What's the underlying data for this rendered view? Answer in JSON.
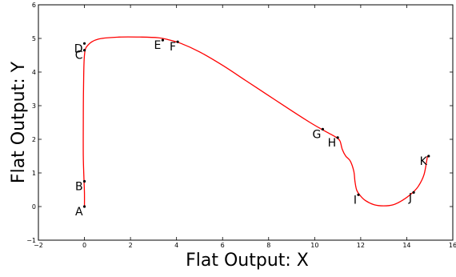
{
  "chart_data": {
    "type": "line",
    "title": "",
    "xlabel": "Flat Output: X",
    "ylabel": "Flat Output: Y",
    "xlim": [
      -2,
      16
    ],
    "ylim": [
      -1,
      6
    ],
    "xticks": [
      -2,
      0,
      2,
      4,
      6,
      8,
      10,
      12,
      14,
      16
    ],
    "yticks": [
      -1,
      0,
      1,
      2,
      3,
      4,
      5,
      6
    ],
    "grid": false,
    "series": [
      {
        "color": "#ff0000",
        "x": [
          0.0,
          0.0,
          -0.02,
          -0.05,
          -0.05,
          -0.04,
          0.0,
          0.15,
          0.6,
          1.5,
          2.5,
          3.2,
          3.6,
          4.2,
          5.0,
          6.0,
          7.0,
          8.0,
          9.0,
          9.8,
          10.3,
          10.7,
          10.95,
          11.1,
          11.2,
          11.35,
          11.55,
          11.7,
          11.75,
          11.82,
          11.95,
          12.2,
          12.6,
          13.0,
          13.4,
          13.8,
          14.2,
          14.5,
          14.75,
          14.9
        ],
        "y": [
          0.0,
          0.4,
          0.8,
          1.5,
          2.5,
          3.5,
          4.5,
          4.8,
          4.98,
          5.04,
          5.04,
          5.02,
          4.97,
          4.85,
          4.6,
          4.2,
          3.75,
          3.3,
          2.85,
          2.5,
          2.3,
          2.15,
          2.05,
          1.95,
          1.7,
          1.5,
          1.35,
          1.05,
          0.75,
          0.5,
          0.35,
          0.18,
          0.05,
          0.02,
          0.05,
          0.18,
          0.38,
          0.6,
          0.95,
          1.5
        ]
      }
    ],
    "annotations": [
      {
        "text": "A",
        "x": 0.0,
        "y": 0.0
      },
      {
        "text": "B",
        "x": 0.0,
        "y": 0.75
      },
      {
        "text": "C",
        "x": 0.0,
        "y": 4.65
      },
      {
        "text": "D",
        "x": 0.0,
        "y": 4.85
      },
      {
        "text": "E",
        "x": 3.4,
        "y": 4.95
      },
      {
        "text": "F",
        "x": 4.05,
        "y": 4.9
      },
      {
        "text": "G",
        "x": 10.35,
        "y": 2.3
      },
      {
        "text": "H",
        "x": 11.0,
        "y": 2.05
      },
      {
        "text": "I",
        "x": 11.9,
        "y": 0.35
      },
      {
        "text": "J",
        "x": 14.3,
        "y": 0.42
      },
      {
        "text": "K",
        "x": 14.95,
        "y": 1.5
      }
    ]
  }
}
